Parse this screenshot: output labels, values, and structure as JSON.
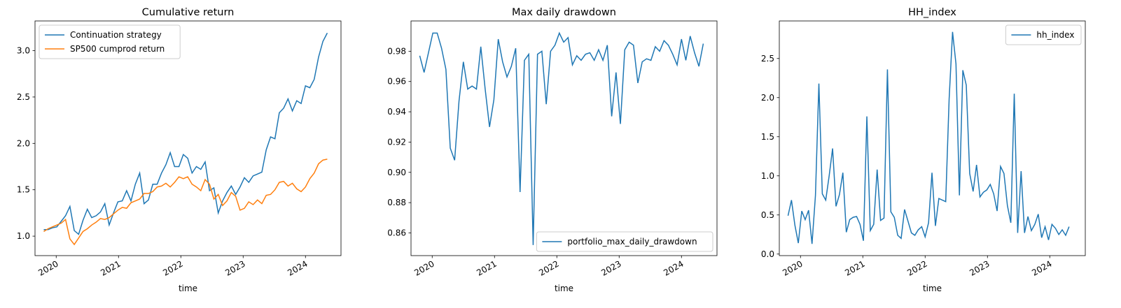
{
  "chart_data": [
    {
      "type": "line",
      "title": "Cumulative return",
      "xlabel": "time",
      "legend": "upper left",
      "x": [
        2019.8,
        2019.87,
        2019.94,
        2020.01,
        2020.08,
        2020.15,
        2020.22,
        2020.29,
        2020.36,
        2020.43,
        2020.5,
        2020.57,
        2020.64,
        2020.71,
        2020.78,
        2020.85,
        2020.92,
        2020.99,
        2021.06,
        2021.13,
        2021.2,
        2021.27,
        2021.34,
        2021.41,
        2021.48,
        2021.55,
        2021.62,
        2021.69,
        2021.76,
        2021.83,
        2021.9,
        2021.97,
        2022.04,
        2022.11,
        2022.18,
        2022.25,
        2022.32,
        2022.39,
        2022.46,
        2022.53,
        2022.6,
        2022.67,
        2022.74,
        2022.81,
        2022.88,
        2022.95,
        2023.02,
        2023.09,
        2023.16,
        2023.23,
        2023.3,
        2023.37,
        2023.44,
        2023.51,
        2023.58,
        2023.65,
        2023.72,
        2023.79,
        2023.86,
        2023.93,
        2024.0,
        2024.07,
        2024.14,
        2024.21,
        2024.28,
        2024.35
      ],
      "series": [
        {
          "name": "Continuation strategy",
          "color": "#1f77b4",
          "values": [
            1.07,
            1.07,
            1.09,
            1.1,
            1.16,
            1.22,
            1.32,
            1.06,
            1.02,
            1.17,
            1.29,
            1.2,
            1.22,
            1.26,
            1.35,
            1.12,
            1.25,
            1.37,
            1.38,
            1.49,
            1.38,
            1.56,
            1.68,
            1.35,
            1.39,
            1.56,
            1.56,
            1.68,
            1.77,
            1.9,
            1.75,
            1.75,
            1.88,
            1.84,
            1.68,
            1.75,
            1.72,
            1.8,
            1.49,
            1.52,
            1.25,
            1.38,
            1.47,
            1.54,
            1.45,
            1.53,
            1.63,
            1.58,
            1.65,
            1.67,
            1.69,
            1.93,
            2.07,
            2.05,
            2.33,
            2.38,
            2.48,
            2.35,
            2.46,
            2.43,
            2.62,
            2.6,
            2.69,
            2.93,
            3.1,
            3.19
          ]
        },
        {
          "name": "SP500 cumprod return",
          "color": "#ff7f0e",
          "values": [
            1.05,
            1.08,
            1.1,
            1.12,
            1.14,
            1.18,
            0.97,
            0.91,
            0.98,
            1.05,
            1.08,
            1.12,
            1.15,
            1.19,
            1.18,
            1.2,
            1.24,
            1.28,
            1.31,
            1.3,
            1.36,
            1.38,
            1.4,
            1.46,
            1.46,
            1.48,
            1.53,
            1.54,
            1.57,
            1.53,
            1.58,
            1.64,
            1.62,
            1.64,
            1.56,
            1.53,
            1.49,
            1.61,
            1.56,
            1.4,
            1.45,
            1.33,
            1.38,
            1.47,
            1.43,
            1.28,
            1.3,
            1.37,
            1.34,
            1.39,
            1.35,
            1.44,
            1.45,
            1.5,
            1.58,
            1.59,
            1.54,
            1.57,
            1.51,
            1.48,
            1.53,
            1.62,
            1.68,
            1.78,
            1.82,
            1.83
          ]
        }
      ],
      "xlim": [
        2019.66,
        2024.57
      ],
      "xticks": [
        2020,
        2021,
        2022,
        2023,
        2024
      ],
      "ylim": [
        0.79,
        3.32
      ],
      "yticks": [
        {
          "value": 1,
          "label": "1.0"
        },
        1.5,
        {
          "value": 2,
          "label": "2.0"
        },
        2.5,
        {
          "value": 3,
          "label": "3.0"
        }
      ]
    },
    {
      "type": "line",
      "title": "Max daily drawdown",
      "xlabel": "time",
      "legend": "lower right",
      "x": [
        2019.8,
        2019.87,
        2019.94,
        2020.01,
        2020.08,
        2020.15,
        2020.22,
        2020.29,
        2020.36,
        2020.43,
        2020.5,
        2020.57,
        2020.64,
        2020.71,
        2020.78,
        2020.85,
        2020.92,
        2020.99,
        2021.06,
        2021.13,
        2021.2,
        2021.27,
        2021.34,
        2021.41,
        2021.48,
        2021.55,
        2021.62,
        2021.69,
        2021.76,
        2021.83,
        2021.9,
        2021.97,
        2022.04,
        2022.11,
        2022.18,
        2022.25,
        2022.32,
        2022.39,
        2022.46,
        2022.53,
        2022.6,
        2022.67,
        2022.74,
        2022.81,
        2022.88,
        2022.95,
        2023.02,
        2023.09,
        2023.16,
        2023.23,
        2023.3,
        2023.37,
        2023.44,
        2023.51,
        2023.58,
        2023.65,
        2023.72,
        2023.79,
        2023.86,
        2023.93,
        2024.0,
        2024.07,
        2024.14,
        2024.21,
        2024.28,
        2024.35
      ],
      "series": [
        {
          "name": "portfolio_max_daily_drawdown",
          "color": "#1f77b4",
          "values": [
            0.977,
            0.966,
            0.979,
            0.992,
            0.992,
            0.982,
            0.968,
            0.916,
            0.908,
            0.947,
            0.973,
            0.955,
            0.957,
            0.955,
            0.983,
            0.955,
            0.93,
            0.948,
            0.988,
            0.973,
            0.963,
            0.97,
            0.982,
            0.887,
            0.974,
            0.978,
            0.852,
            0.978,
            0.98,
            0.945,
            0.98,
            0.984,
            0.992,
            0.986,
            0.989,
            0.971,
            0.977,
            0.974,
            0.978,
            0.979,
            0.974,
            0.981,
            0.974,
            0.984,
            0.937,
            0.966,
            0.932,
            0.981,
            0.986,
            0.984,
            0.959,
            0.973,
            0.975,
            0.974,
            0.983,
            0.98,
            0.987,
            0.984,
            0.978,
            0.971,
            0.988,
            0.974,
            0.99,
            0.979,
            0.97,
            0.985
          ]
        }
      ],
      "xlim": [
        2019.66,
        2024.57
      ],
      "xticks": [
        2020,
        2021,
        2022,
        2023,
        2024
      ],
      "ylim": [
        0.845,
        1.0
      ],
      "yticks": [
        0.86,
        0.88,
        {
          "value": 0.9,
          "label": "0.90"
        },
        0.92,
        0.94,
        0.96,
        0.98
      ]
    },
    {
      "type": "line",
      "title": "HH_index",
      "xlabel": "time",
      "legend": "upper right",
      "x": [
        2019.8,
        2019.855,
        2019.91,
        2019.965,
        2020.02,
        2020.075,
        2020.13,
        2020.185,
        2020.24,
        2020.295,
        2020.35,
        2020.405,
        2020.46,
        2020.515,
        2020.57,
        2020.625,
        2020.68,
        2020.735,
        2020.79,
        2020.845,
        2020.9,
        2020.955,
        2021.01,
        2021.065,
        2021.12,
        2021.175,
        2021.23,
        2021.285,
        2021.34,
        2021.395,
        2021.45,
        2021.505,
        2021.56,
        2021.615,
        2021.67,
        2021.725,
        2021.78,
        2021.835,
        2021.89,
        2021.945,
        2022.0,
        2022.055,
        2022.11,
        2022.165,
        2022.22,
        2022.275,
        2022.33,
        2022.385,
        2022.44,
        2022.495,
        2022.55,
        2022.605,
        2022.66,
        2022.715,
        2022.77,
        2022.825,
        2022.88,
        2022.935,
        2022.99,
        2023.045,
        2023.1,
        2023.155,
        2023.21,
        2023.265,
        2023.32,
        2023.375,
        2023.43,
        2023.485,
        2023.54,
        2023.595,
        2023.65,
        2023.705,
        2023.76,
        2023.815,
        2023.87,
        2023.925,
        2023.98,
        2024.035,
        2024.09,
        2024.145,
        2024.2,
        2024.255,
        2024.31
      ],
      "series": [
        {
          "name": "hh_index",
          "color": "#1f77b4",
          "values": [
            0.49,
            0.69,
            0.37,
            0.14,
            0.55,
            0.44,
            0.56,
            0.13,
            0.75,
            2.18,
            0.77,
            0.69,
            1.0,
            1.35,
            0.61,
            0.76,
            1.04,
            0.28,
            0.44,
            0.47,
            0.48,
            0.38,
            0.17,
            1.76,
            0.3,
            0.38,
            1.08,
            0.43,
            0.46,
            2.36,
            0.54,
            0.47,
            0.24,
            0.2,
            0.57,
            0.42,
            0.27,
            0.24,
            0.31,
            0.35,
            0.22,
            0.4,
            1.04,
            0.36,
            0.71,
            0.69,
            0.67,
            1.98,
            2.84,
            2.43,
            0.75,
            2.35,
            2.16,
            1.03,
            0.8,
            1.14,
            0.73,
            0.79,
            0.82,
            0.89,
            0.77,
            0.55,
            1.12,
            1.03,
            0.62,
            0.4,
            2.05,
            0.27,
            1.06,
            0.27,
            0.48,
            0.3,
            0.38,
            0.51,
            0.21,
            0.35,
            0.18,
            0.38,
            0.33,
            0.25,
            0.31,
            0.24,
            0.35
          ]
        }
      ],
      "xlim": [
        2019.66,
        2024.57
      ],
      "xticks": [
        2020,
        2021,
        2022,
        2023,
        2024
      ],
      "ylim": [
        -0.02,
        2.98
      ],
      "yticks": [
        {
          "value": 0,
          "label": "0.0"
        },
        0.5,
        {
          "value": 1,
          "label": "1.0"
        },
        1.5,
        {
          "value": 2,
          "label": "2.0"
        },
        2.5
      ]
    }
  ]
}
